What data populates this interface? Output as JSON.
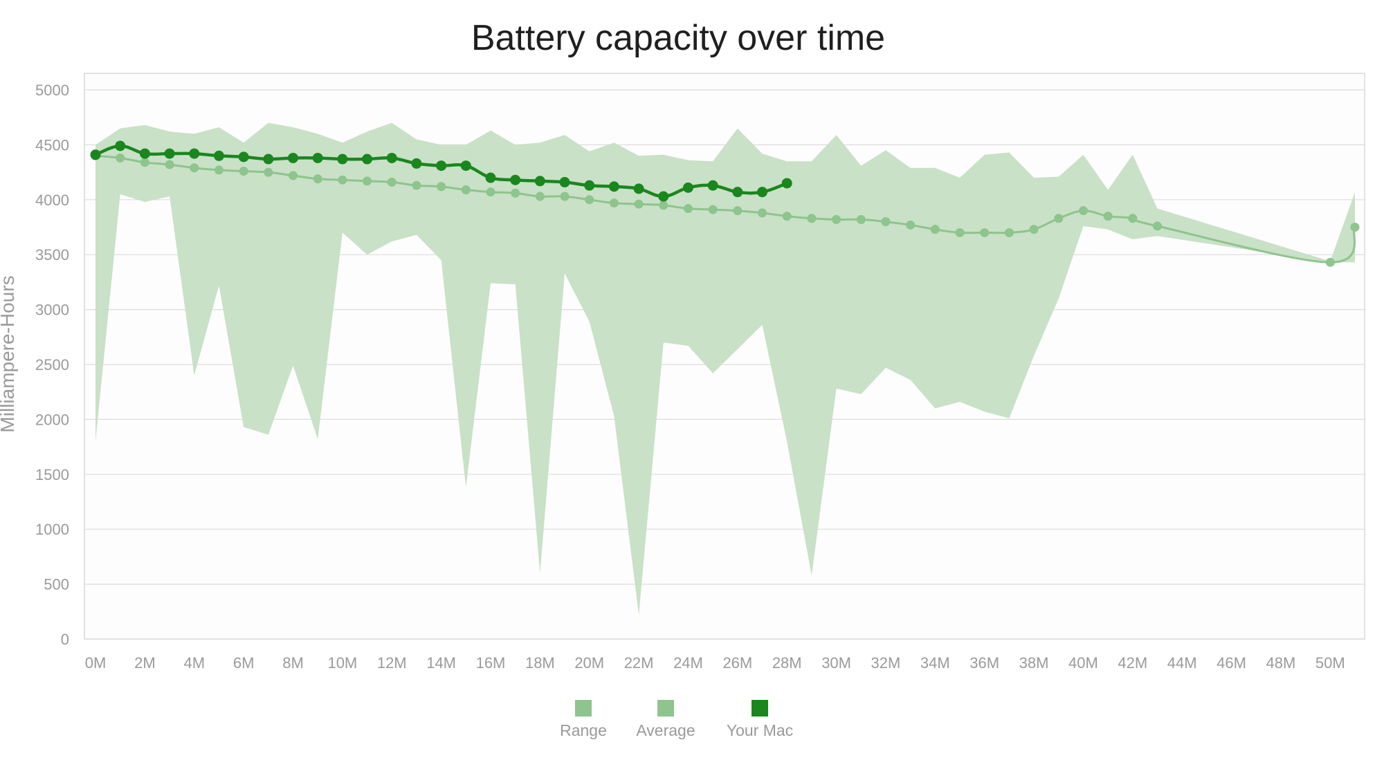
{
  "chart_data": {
    "type": "line",
    "title": "Battery capacity over time",
    "xlabel": "",
    "ylabel": "Milliampere-Hours",
    "ylim": [
      0,
      5000
    ],
    "xlim": [
      0,
      51
    ],
    "yticks": [
      0,
      500,
      1000,
      1500,
      2000,
      2500,
      3000,
      3500,
      4000,
      4500,
      5000
    ],
    "xtick_labels": [
      "0M",
      "2M",
      "4M",
      "6M",
      "8M",
      "10M",
      "12M",
      "14M",
      "16M",
      "18M",
      "20M",
      "22M",
      "24M",
      "26M",
      "28M",
      "30M",
      "32M",
      "34M",
      "36M",
      "38M",
      "40M",
      "42M",
      "44M",
      "46M",
      "48M",
      "50M"
    ],
    "grid": true,
    "legend_position": "bottom-center",
    "colors": {
      "range": "#c8e0c6",
      "average": "#8ec48d",
      "your_mac": "#1a861e"
    },
    "series": [
      {
        "name": "Range",
        "type": "area",
        "x": [
          0,
          1,
          2,
          3,
          4,
          5,
          6,
          7,
          8,
          9,
          10,
          11,
          12,
          13,
          14,
          15,
          16,
          17,
          18,
          19,
          20,
          21,
          22,
          23,
          24,
          25,
          26,
          27,
          28,
          29,
          30,
          31,
          32,
          33,
          34,
          35,
          36,
          37,
          38,
          39,
          40,
          41,
          42,
          43,
          50,
          51
        ],
        "high": [
          4500,
          4650,
          4680,
          4620,
          4600,
          4660,
          4520,
          4700,
          4660,
          4600,
          4520,
          4620,
          4700,
          4550,
          4500,
          4500,
          4630,
          4500,
          4520,
          4590,
          4440,
          4520,
          4400,
          4410,
          4360,
          4350,
          4650,
          4420,
          4350,
          4350,
          4590,
          4310,
          4450,
          4290,
          4290,
          4200,
          4410,
          4430,
          4200,
          4210,
          4410,
          4090,
          4410,
          3920,
          3440,
          4070
        ],
        "low": [
          1800,
          4050,
          3980,
          4030,
          2400,
          3220,
          1930,
          1860,
          2490,
          1820,
          3700,
          3500,
          3620,
          3680,
          3450,
          1380,
          3240,
          3230,
          600,
          3330,
          2890,
          2030,
          220,
          2700,
          2670,
          2420,
          2640,
          2860,
          1800,
          580,
          2280,
          2230,
          2470,
          2360,
          2100,
          2160,
          2070,
          2010,
          2580,
          3100,
          3760,
          3730,
          3640,
          3670,
          3430,
          3430
        ]
      },
      {
        "name": "Average",
        "type": "line",
        "x": [
          0,
          1,
          2,
          3,
          4,
          5,
          6,
          7,
          8,
          9,
          10,
          11,
          12,
          13,
          14,
          15,
          16,
          17,
          18,
          19,
          20,
          21,
          22,
          23,
          24,
          25,
          26,
          27,
          28,
          29,
          30,
          31,
          32,
          33,
          34,
          35,
          36,
          37,
          38,
          39,
          40,
          41,
          42,
          43,
          50,
          51
        ],
        "values": [
          4400,
          4380,
          4340,
          4320,
          4290,
          4270,
          4260,
          4250,
          4220,
          4190,
          4180,
          4170,
          4160,
          4130,
          4120,
          4090,
          4070,
          4060,
          4030,
          4030,
          4000,
          3970,
          3960,
          3950,
          3920,
          3910,
          3900,
          3880,
          3850,
          3830,
          3820,
          3820,
          3800,
          3770,
          3730,
          3700,
          3700,
          3700,
          3730,
          3830,
          3900,
          3850,
          3830,
          3760,
          3430,
          3750
        ]
      },
      {
        "name": "Your Mac",
        "type": "line",
        "x": [
          0,
          1,
          2,
          3,
          4,
          5,
          6,
          7,
          8,
          9,
          10,
          11,
          12,
          13,
          14,
          15,
          16,
          17,
          18,
          19,
          20,
          21,
          22,
          23,
          24,
          25,
          26,
          27,
          28
        ],
        "values": [
          4410,
          4490,
          4420,
          4420,
          4420,
          4400,
          4390,
          4370,
          4380,
          4380,
          4370,
          4370,
          4380,
          4330,
          4310,
          4310,
          4200,
          4180,
          4170,
          4160,
          4130,
          4120,
          4100,
          4030,
          4110,
          4130,
          4070,
          4070,
          4150
        ]
      }
    ]
  }
}
